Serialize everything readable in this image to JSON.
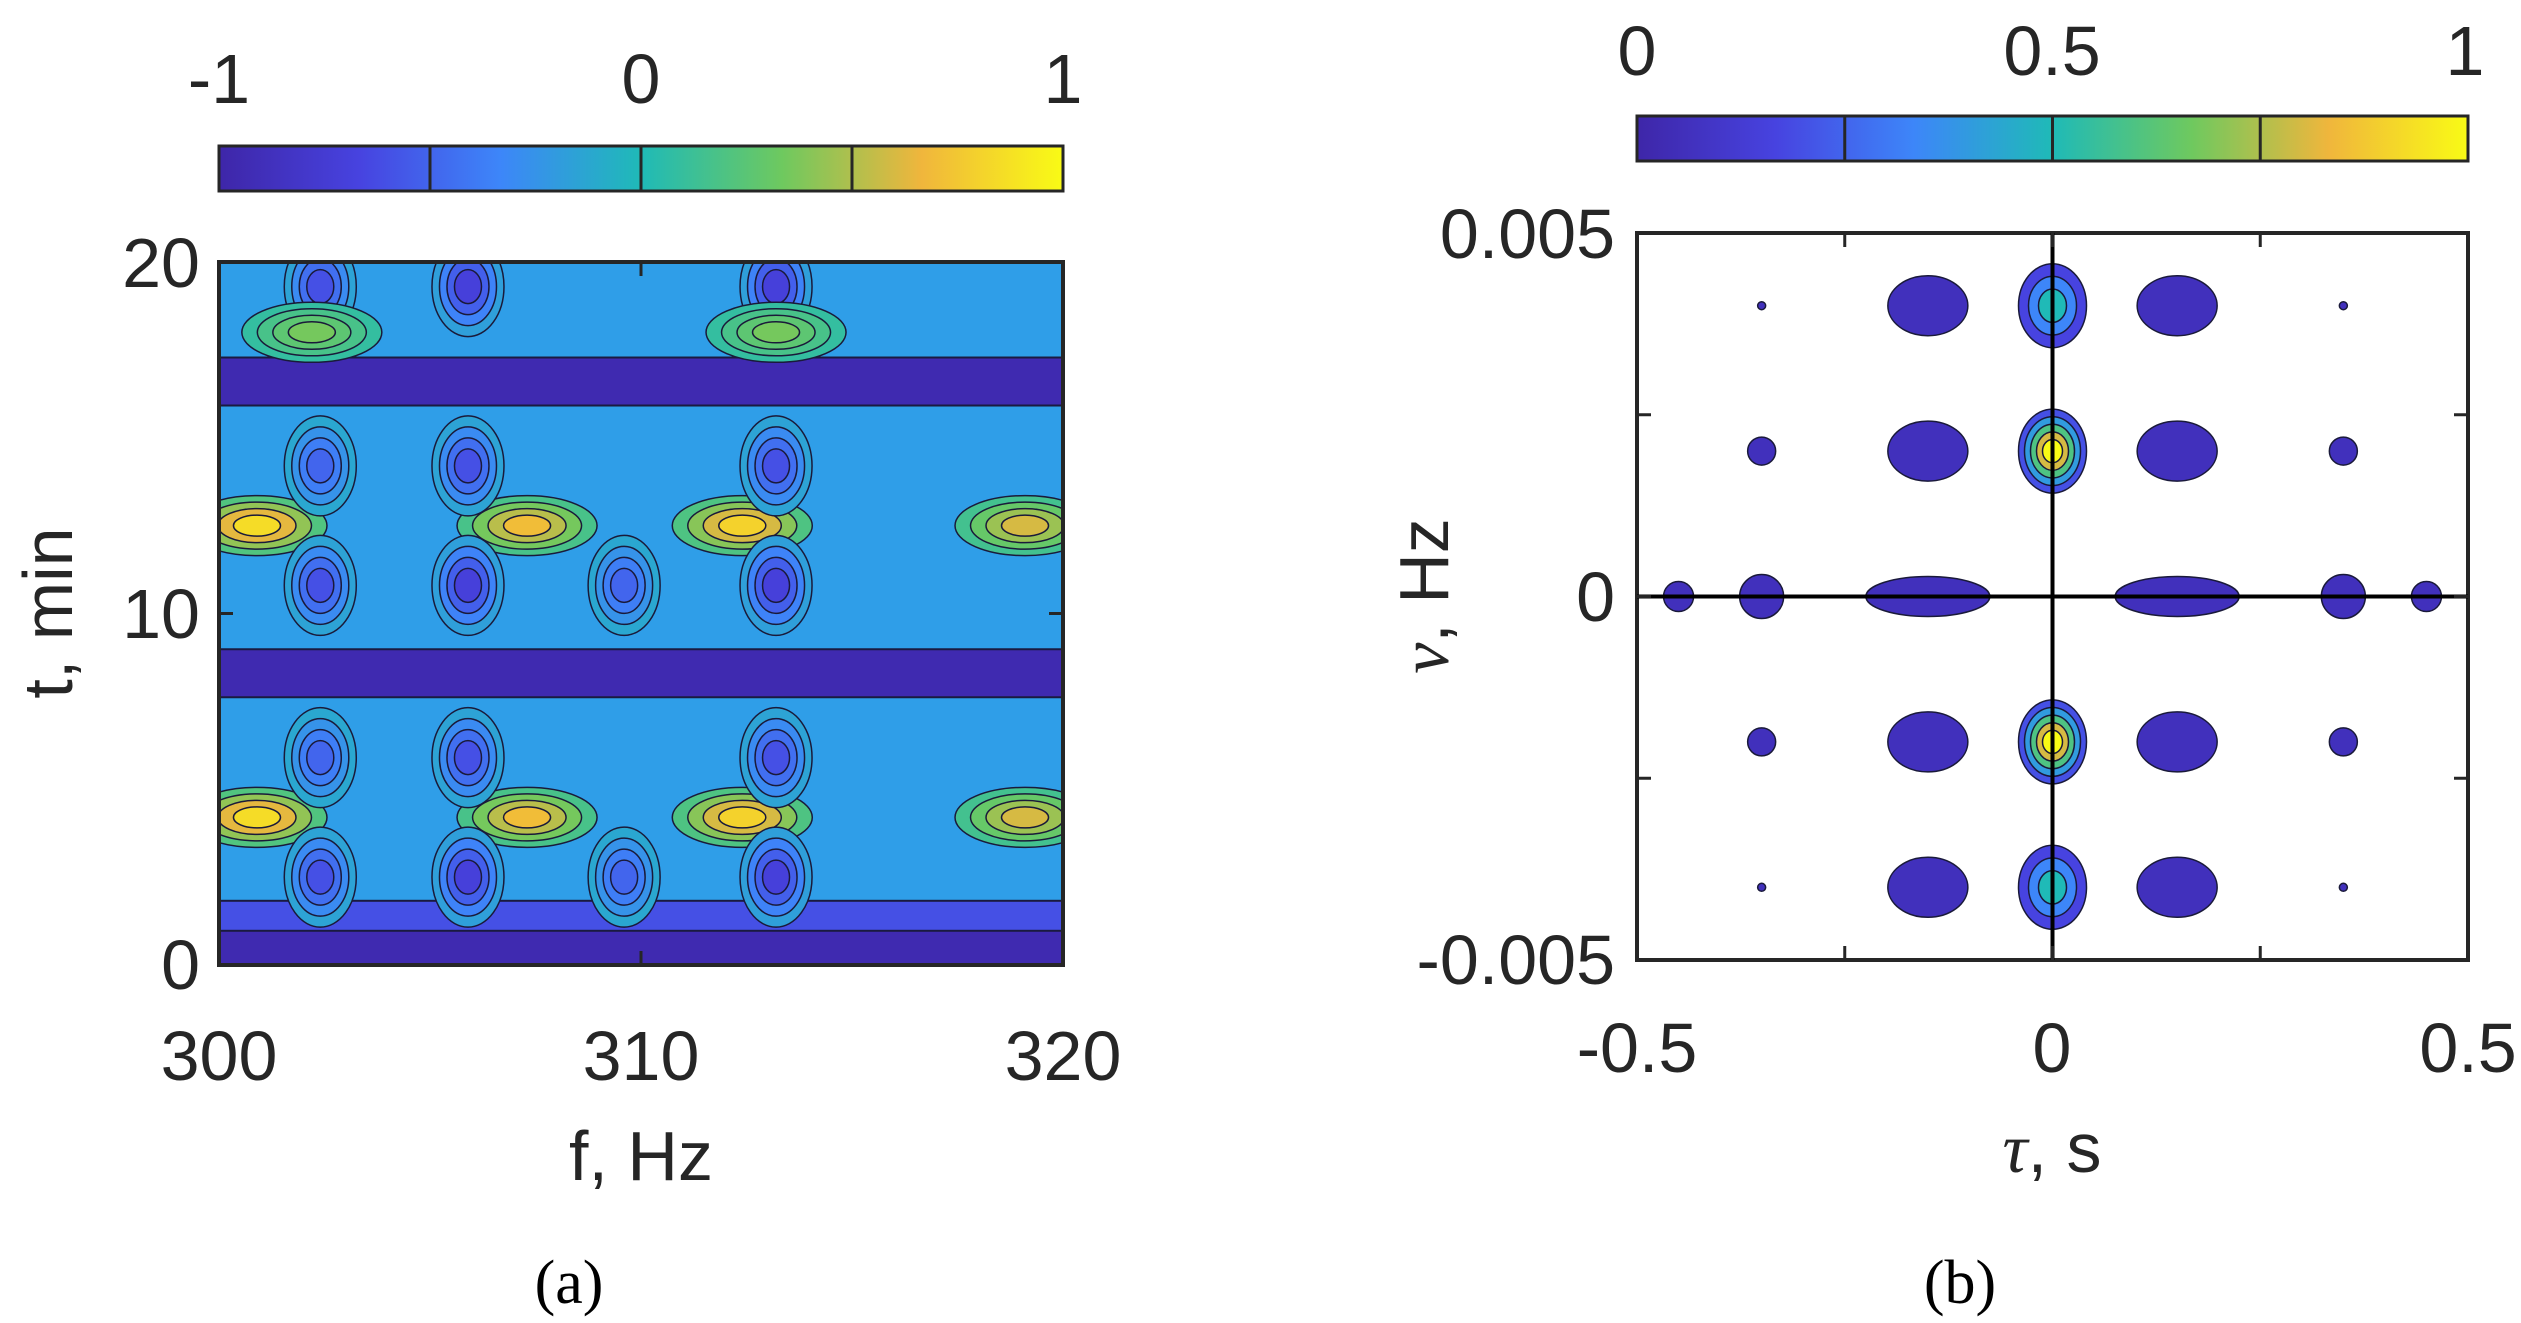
{
  "chart_data": [
    {
      "type": "heatmap",
      "panel_label": "(a)",
      "xlabel": "f, Hz",
      "ylabel": "t, min",
      "xlim": [
        300,
        320
      ],
      "ylim": [
        0,
        20
      ],
      "xticks": [
        300,
        310,
        320
      ],
      "yticks": [
        0,
        10,
        20
      ],
      "colorbar": {
        "range": [
          -1,
          1
        ],
        "ticks": [
          "-1",
          "0",
          "1"
        ],
        "levels": [
          -1,
          -0.5,
          0,
          0.5,
          1
        ],
        "placement": "top"
      },
      "colormap": [
        "#3e26a8",
        "#4743e0",
        "#3d86f9",
        "#1fbab7",
        "#6ec95f",
        "#f0b63c",
        "#f9fb15"
      ],
      "contour_lines": true,
      "background_value": 0,
      "horizontal_bands": [
        {
          "t": 0.5,
          "value": -0.95
        },
        {
          "t": 1.4,
          "value": -0.6
        },
        {
          "t": 8.3,
          "value": -0.95
        },
        {
          "t": 16.6,
          "value": -0.95
        }
      ],
      "features": [
        {
          "f": 300.9,
          "t": 4.2,
          "value": 0.85
        },
        {
          "f": 307.3,
          "t": 4.2,
          "value": 0.7
        },
        {
          "f": 312.4,
          "t": 4.2,
          "value": 0.8
        },
        {
          "f": 319.1,
          "t": 4.2,
          "value": 0.6
        },
        {
          "f": 300.9,
          "t": 12.5,
          "value": 0.85
        },
        {
          "f": 307.3,
          "t": 12.5,
          "value": 0.7
        },
        {
          "f": 312.4,
          "t": 12.5,
          "value": 0.8
        },
        {
          "f": 319.1,
          "t": 12.5,
          "value": 0.6
        },
        {
          "f": 302.4,
          "t": 2.5,
          "value": -0.6
        },
        {
          "f": 305.9,
          "t": 2.5,
          "value": -0.7
        },
        {
          "f": 309.6,
          "t": 2.5,
          "value": -0.5
        },
        {
          "f": 313.2,
          "t": 2.5,
          "value": -0.7
        },
        {
          "f": 302.4,
          "t": 5.9,
          "value": -0.5
        },
        {
          "f": 305.9,
          "t": 5.9,
          "value": -0.6
        },
        {
          "f": 313.2,
          "t": 5.9,
          "value": -0.6
        },
        {
          "f": 302.4,
          "t": 10.8,
          "value": -0.6
        },
        {
          "f": 305.9,
          "t": 10.8,
          "value": -0.7
        },
        {
          "f": 309.6,
          "t": 10.8,
          "value": -0.5
        },
        {
          "f": 313.2,
          "t": 10.8,
          "value": -0.7
        },
        {
          "f": 302.4,
          "t": 14.2,
          "value": -0.5
        },
        {
          "f": 305.9,
          "t": 14.2,
          "value": -0.6
        },
        {
          "f": 313.2,
          "t": 14.2,
          "value": -0.6
        },
        {
          "f": 302.4,
          "t": 19.3,
          "value": -0.6
        },
        {
          "f": 305.9,
          "t": 19.3,
          "value": -0.7
        },
        {
          "f": 313.2,
          "t": 19.3,
          "value": -0.7
        },
        {
          "f": 302.2,
          "t": 18.0,
          "value": 0.35
        },
        {
          "f": 313.2,
          "t": 18.0,
          "value": 0.35
        }
      ]
    },
    {
      "type": "heatmap",
      "panel_label": "(b)",
      "xlabel_symbol": "τ",
      "xlabel_unit": ", s",
      "ylabel_symbol": "ν",
      "ylabel_unit": ", Hz",
      "xlim": [
        -0.5,
        0.5
      ],
      "ylim": [
        -0.005,
        0.005
      ],
      "xticks": [
        "-0.5",
        "0",
        "0.5"
      ],
      "yticks": [
        "-0.005",
        "0",
        "0.005"
      ],
      "xtick_values": [
        -0.5,
        0,
        0.5
      ],
      "ytick_values": [
        -0.005,
        0,
        0.005
      ],
      "minor_xtick_values": [
        -0.25,
        0.25
      ],
      "minor_ytick_values": [
        -0.0025,
        0.0025
      ],
      "colorbar": {
        "range": [
          0,
          1
        ],
        "ticks": [
          "0",
          "0.5",
          "1"
        ],
        "levels": [
          0,
          0.25,
          0.5,
          0.75,
          1
        ],
        "placement": "top"
      },
      "colormap": [
        "#3e26a8",
        "#4743e0",
        "#3d86f9",
        "#1fbab7",
        "#6ec95f",
        "#f0b63c",
        "#f9fb15"
      ],
      "contour_lines": true,
      "axis_lines": [
        "tau=0",
        "nu=0"
      ],
      "features": [
        {
          "tau": 0,
          "nu": 0.002,
          "value": 1.0
        },
        {
          "tau": 0,
          "nu": -0.002,
          "value": 1.0
        },
        {
          "tau": 0,
          "nu": 0.004,
          "value": 0.5
        },
        {
          "tau": 0,
          "nu": -0.004,
          "value": 0.5
        },
        {
          "tau": -0.15,
          "nu": 0.004,
          "value": 0.15
        },
        {
          "tau": 0.15,
          "nu": 0.004,
          "value": 0.15
        },
        {
          "tau": -0.15,
          "nu": -0.004,
          "value": 0.15
        },
        {
          "tau": 0.15,
          "nu": -0.004,
          "value": 0.15
        },
        {
          "tau": -0.15,
          "nu": 0.002,
          "value": 0.15
        },
        {
          "tau": 0.15,
          "nu": 0.002,
          "value": 0.15
        },
        {
          "tau": -0.15,
          "nu": -0.002,
          "value": 0.15
        },
        {
          "tau": 0.15,
          "nu": -0.002,
          "value": 0.15
        },
        {
          "tau": -0.15,
          "nu": 0,
          "value": 0.12
        },
        {
          "tau": 0.15,
          "nu": 0,
          "value": 0.12
        },
        {
          "tau": -0.35,
          "nu": 0,
          "value": 0.1
        },
        {
          "tau": 0.35,
          "nu": 0,
          "value": 0.1
        },
        {
          "tau": -0.45,
          "nu": 0,
          "value": 0.08
        },
        {
          "tau": 0.45,
          "nu": 0,
          "value": 0.08
        },
        {
          "tau": -0.35,
          "nu": 0.002,
          "value": 0.08
        },
        {
          "tau": 0.35,
          "nu": 0.002,
          "value": 0.08
        },
        {
          "tau": -0.35,
          "nu": -0.002,
          "value": 0.08
        },
        {
          "tau": 0.35,
          "nu": -0.002,
          "value": 0.08
        },
        {
          "tau": -0.35,
          "nu": 0.004,
          "value": 0.05
        },
        {
          "tau": 0.35,
          "nu": 0.004,
          "value": 0.05
        },
        {
          "tau": -0.35,
          "nu": -0.004,
          "value": 0.05
        },
        {
          "tau": 0.35,
          "nu": -0.004,
          "value": 0.05
        }
      ]
    }
  ]
}
